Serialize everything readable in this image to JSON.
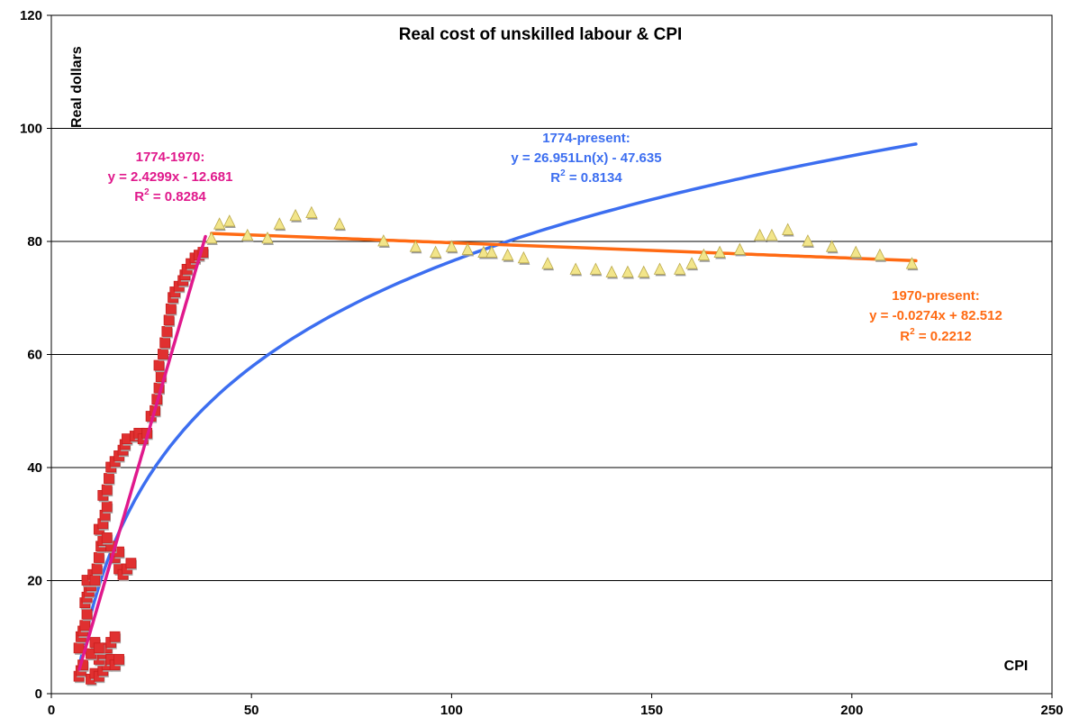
{
  "chart_data": {
    "type": "scatter",
    "title": "Real cost of unskilled labour & CPI",
    "xlabel": "CPI",
    "ylabel": "Real dollars",
    "xlim": [
      0,
      250
    ],
    "ylim": [
      0,
      120
    ],
    "x_ticks": [
      0,
      50,
      100,
      150,
      200,
      250
    ],
    "y_ticks": [
      0,
      20,
      40,
      60,
      80,
      100,
      120
    ],
    "grid": "horizontal",
    "series": [
      {
        "name": "1774-1970",
        "marker": "square",
        "color": "#e03030",
        "points": [
          [
            7,
            3
          ],
          [
            7.5,
            4
          ],
          [
            8,
            5
          ],
          [
            7,
            8
          ],
          [
            7.5,
            10
          ],
          [
            8,
            11
          ],
          [
            8.5,
            12
          ],
          [
            9,
            14
          ],
          [
            8.5,
            16
          ],
          [
            9,
            17
          ],
          [
            9.5,
            18
          ],
          [
            10,
            19
          ],
          [
            9,
            20
          ],
          [
            10.5,
            21
          ],
          [
            11,
            20
          ],
          [
            11.5,
            22
          ],
          [
            12,
            24
          ],
          [
            12.5,
            26
          ],
          [
            13,
            27
          ],
          [
            12,
            29
          ],
          [
            13,
            30
          ],
          [
            13.5,
            31.5
          ],
          [
            14,
            33
          ],
          [
            13,
            35
          ],
          [
            14,
            36
          ],
          [
            14.5,
            38
          ],
          [
            15,
            40
          ],
          [
            16,
            41
          ],
          [
            17,
            42
          ],
          [
            18,
            43
          ],
          [
            18.5,
            44
          ],
          [
            19,
            45
          ],
          [
            21,
            45.5
          ],
          [
            22,
            46
          ],
          [
            23,
            45
          ],
          [
            24,
            46
          ],
          [
            25,
            49
          ],
          [
            26,
            50
          ],
          [
            26.5,
            52
          ],
          [
            27,
            54
          ],
          [
            27.5,
            56
          ],
          [
            27,
            58
          ],
          [
            28,
            60
          ],
          [
            28.5,
            62
          ],
          [
            29,
            64
          ],
          [
            29.5,
            66
          ],
          [
            30,
            68
          ],
          [
            30.5,
            70
          ],
          [
            31,
            71
          ],
          [
            32,
            72
          ],
          [
            33,
            73
          ],
          [
            33.5,
            74
          ],
          [
            34,
            75
          ],
          [
            35,
            76
          ],
          [
            36,
            77
          ],
          [
            37,
            77.5
          ],
          [
            38,
            78
          ],
          [
            10,
            2.5
          ],
          [
            11,
            3.5
          ],
          [
            12,
            3
          ],
          [
            13,
            4
          ],
          [
            14,
            5
          ],
          [
            12,
            6
          ],
          [
            13,
            7
          ],
          [
            14,
            8
          ],
          [
            15,
            9
          ],
          [
            16,
            10
          ],
          [
            11,
            9
          ],
          [
            10,
            7
          ],
          [
            12,
            8
          ],
          [
            15,
            6
          ],
          [
            16,
            5
          ],
          [
            17,
            6
          ],
          [
            17,
            22
          ],
          [
            18,
            21
          ],
          [
            19,
            22
          ],
          [
            20,
            23
          ],
          [
            16,
            24
          ],
          [
            17,
            25
          ],
          [
            15,
            26
          ],
          [
            14,
            27.5
          ]
        ]
      },
      {
        "name": "1970-present",
        "marker": "triangle",
        "color": "#f2e58a",
        "points": [
          [
            40,
            80.5
          ],
          [
            42,
            83
          ],
          [
            44.5,
            83.5
          ],
          [
            49,
            81
          ],
          [
            54,
            80.5
          ],
          [
            57,
            83
          ],
          [
            61,
            84.5
          ],
          [
            65,
            85
          ],
          [
            72,
            83
          ],
          [
            83,
            80
          ],
          [
            91,
            79
          ],
          [
            96,
            78
          ],
          [
            100,
            79
          ],
          [
            104,
            78.5
          ],
          [
            108,
            78
          ],
          [
            110,
            78
          ],
          [
            114,
            77.5
          ],
          [
            118,
            77
          ],
          [
            124,
            76
          ],
          [
            131,
            75
          ],
          [
            136,
            75
          ],
          [
            140,
            74.5
          ],
          [
            144,
            74.5
          ],
          [
            148,
            74.5
          ],
          [
            152,
            75
          ],
          [
            157,
            75
          ],
          [
            160,
            76
          ],
          [
            163,
            77.5
          ],
          [
            167,
            78
          ],
          [
            172,
            78.5
          ],
          [
            177,
            81
          ],
          [
            180,
            81
          ],
          [
            184,
            82
          ],
          [
            189,
            80
          ],
          [
            195,
            79
          ],
          [
            201,
            78
          ],
          [
            207,
            77.5
          ],
          [
            215,
            76
          ]
        ]
      }
    ],
    "trendlines": [
      {
        "name": "1774-1970",
        "type": "linear",
        "slope": 2.4299,
        "intercept": -12.681,
        "x_range": [
          7,
          38.5
        ],
        "color": "#e0198c"
      },
      {
        "name": "1774-present",
        "type": "log",
        "a": 26.951,
        "b": -47.635,
        "x_range": [
          7,
          216
        ],
        "color": "#3c6ef0"
      },
      {
        "name": "1970-present",
        "type": "linear",
        "slope": -0.0274,
        "intercept": 82.512,
        "x_range": [
          40,
          216
        ],
        "color": "#ff6a13"
      }
    ],
    "annotations": [
      {
        "color": "#e0198c",
        "line1": "1774-1970:",
        "line2": "y = 2.4299x - 12.681",
        "r2_prefix": "R",
        "r2_sup": "2",
        "r2_value": " = 0.8284"
      },
      {
        "color": "#3c6ef0",
        "line1": "1774-present:",
        "line2": "y = 26.951Ln(x) - 47.635",
        "r2_prefix": "R",
        "r2_sup": "2",
        "r2_value": " = 0.8134"
      },
      {
        "color": "#ff6a13",
        "line1": "1970-present:",
        "line2": "y = -0.0274x + 82.512",
        "r2_prefix": "R",
        "r2_sup": "2",
        "r2_value": " = 0.2212"
      }
    ]
  }
}
